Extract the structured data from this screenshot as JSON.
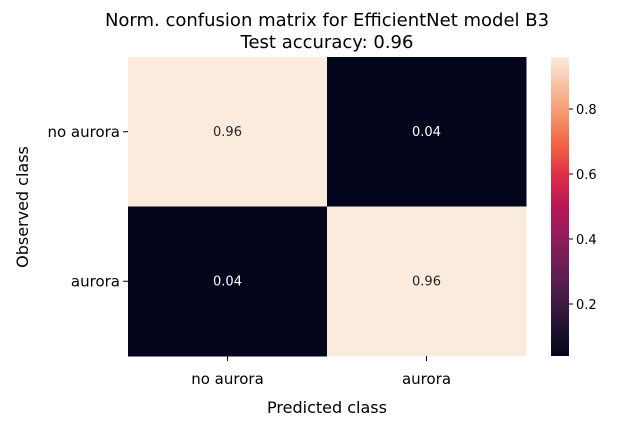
{
  "chart_data": {
    "type": "heatmap",
    "title": "Norm. confusion matrix for EfficientNet model B3",
    "subtitle": "Test accuracy: 0.96",
    "xlabel": "Predicted class",
    "ylabel": "Observed class",
    "x_categories": [
      "no aurora",
      "aurora"
    ],
    "y_categories": [
      "no aurora",
      "aurora"
    ],
    "values": [
      [
        0.96,
        0.04
      ],
      [
        0.04,
        0.96
      ]
    ],
    "cell_labels": [
      [
        "0.96",
        "0.04"
      ],
      [
        "0.04",
        "0.96"
      ]
    ],
    "colormap": "rocket",
    "colorbar": {
      "range": [
        0.04,
        0.96
      ],
      "ticks": [
        0.2,
        0.4,
        0.6,
        0.8
      ],
      "tick_labels": [
        "0.2",
        "0.4",
        "0.6",
        "0.8"
      ]
    }
  }
}
